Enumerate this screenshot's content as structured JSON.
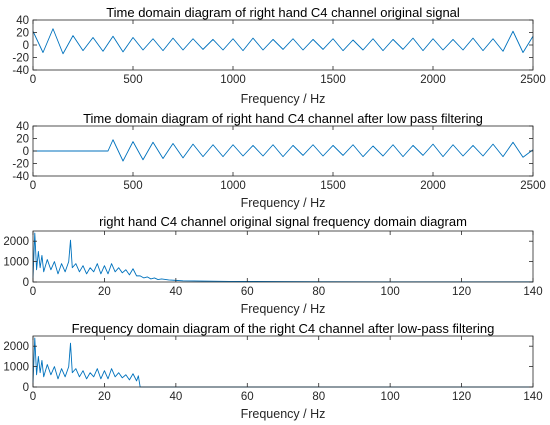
{
  "chart_data": [
    {
      "type": "line",
      "title": "Time domain diagram of right hand C4 channel original signal",
      "xlabel": "Frequency / Hz",
      "ylabel": "",
      "xlim": [
        0,
        2500
      ],
      "ylim": [
        -40,
        40
      ],
      "xticks": [
        "0",
        "500",
        "1000",
        "1500",
        "2000",
        "2500"
      ],
      "yticks": [
        "40",
        "20",
        "0",
        "-20",
        "-40"
      ],
      "grid": false,
      "line_color": "#0072BD",
      "series": [
        {
          "x": [
            0,
            50,
            100,
            150,
            200,
            250,
            300,
            350,
            400,
            450,
            500,
            550,
            600,
            650,
            700,
            750,
            800,
            850,
            900,
            950,
            1000,
            1050,
            1100,
            1150,
            1200,
            1250,
            1300,
            1350,
            1400,
            1450,
            1500,
            1550,
            1600,
            1650,
            1700,
            1750,
            1800,
            1850,
            1900,
            1950,
            2000,
            2050,
            2100,
            2150,
            2200,
            2250,
            2300,
            2350,
            2400,
            2450,
            2500
          ],
          "y": [
            22,
            -12,
            26,
            -14,
            15,
            -9,
            12,
            -10,
            14,
            -11,
            12,
            -8,
            10,
            -9,
            11,
            -8,
            10,
            -7,
            9,
            -8,
            10,
            -9,
            11,
            -8,
            9,
            -7,
            10,
            -8,
            9,
            -7,
            10,
            -9,
            8,
            -8,
            10,
            -9,
            9,
            -7,
            11,
            -9,
            10,
            -8,
            9,
            -8,
            11,
            -9,
            10,
            -10,
            22,
            -12,
            14
          ]
        }
      ]
    },
    {
      "type": "line",
      "title": "Time domain diagram of right hand C4 channel after low pass filtering",
      "xlabel": "Frequency / Hz",
      "ylabel": "",
      "xlim": [
        0,
        2500
      ],
      "ylim": [
        -40,
        40
      ],
      "xticks": [
        "0",
        "500",
        "1000",
        "1500",
        "2000",
        "2500"
      ],
      "yticks": [
        "40",
        "20",
        "0",
        "-20",
        "-40"
      ],
      "grid": false,
      "line_color": "#0072BD",
      "series": [
        {
          "x": [
            0,
            375,
            400,
            450,
            500,
            550,
            600,
            650,
            700,
            750,
            800,
            850,
            900,
            950,
            1000,
            1050,
            1100,
            1150,
            1200,
            1250,
            1300,
            1350,
            1400,
            1450,
            1500,
            1550,
            1600,
            1650,
            1700,
            1750,
            1800,
            1850,
            1900,
            1950,
            2000,
            2050,
            2100,
            2150,
            2200,
            2250,
            2300,
            2350,
            2400,
            2450,
            2500
          ],
          "y": [
            0,
            0,
            18,
            -16,
            15,
            -14,
            14,
            -12,
            12,
            -11,
            11,
            -9,
            10,
            -9,
            10,
            -8,
            9,
            -8,
            10,
            -9,
            9,
            -7,
            10,
            -8,
            9,
            -7,
            10,
            -9,
            8,
            -8,
            10,
            -9,
            9,
            -7,
            11,
            -9,
            10,
            -8,
            9,
            -8,
            11,
            -9,
            14,
            -10,
            2
          ]
        }
      ]
    },
    {
      "type": "line",
      "title": "right hand C4 channel original signal frequency domain diagram",
      "xlabel": "Frequency / Hz",
      "ylabel": "",
      "xlim": [
        0,
        140
      ],
      "ylim": [
        0,
        2500
      ],
      "xticks": [
        "0",
        "20",
        "40",
        "60",
        "80",
        "100",
        "120",
        "140"
      ],
      "yticks": [
        "2000",
        "1000",
        "0"
      ],
      "grid": false,
      "line_color": "#0072BD",
      "series": [
        {
          "x": [
            0,
            0.5,
            1,
            1.5,
            2,
            2.5,
            3,
            4,
            5,
            6,
            7,
            8,
            9,
            10,
            10.5,
            11,
            12,
            13,
            14,
            15,
            16,
            17,
            18,
            19,
            20,
            21,
            22,
            23,
            24,
            25,
            26,
            27,
            28,
            29,
            30,
            31,
            32,
            33,
            34,
            35,
            36,
            38,
            40,
            42,
            45,
            50,
            55,
            60,
            70,
            80,
            100,
            120,
            140
          ],
          "y": [
            200,
            2400,
            600,
            1500,
            700,
            1300,
            500,
            1100,
            600,
            1000,
            400,
            900,
            500,
            1000,
            2050,
            700,
            900,
            500,
            800,
            400,
            700,
            500,
            900,
            400,
            800,
            400,
            900,
            500,
            700,
            450,
            600,
            350,
            650,
            300,
            300,
            200,
            250,
            150,
            200,
            120,
            150,
            100,
            80,
            60,
            50,
            40,
            30,
            25,
            20,
            15,
            10,
            10,
            10
          ]
        }
      ]
    },
    {
      "type": "line",
      "title": "Frequency domain diagram of the right C4 channel after low-pass filtering",
      "xlabel": "Frequency / Hz",
      "ylabel": "",
      "xlim": [
        0,
        140
      ],
      "ylim": [
        0,
        2500
      ],
      "xticks": [
        "0",
        "20",
        "40",
        "60",
        "80",
        "100",
        "120",
        "140"
      ],
      "yticks": [
        "2000",
        "1000",
        "0"
      ],
      "grid": false,
      "line_color": "#0072BD",
      "series": [
        {
          "x": [
            0,
            0.5,
            1,
            1.5,
            2,
            2.5,
            3,
            4,
            5,
            6,
            7,
            8,
            9,
            10,
            10.5,
            11,
            12,
            13,
            14,
            15,
            16,
            17,
            18,
            19,
            20,
            21,
            22,
            23,
            24,
            25,
            26,
            27,
            28,
            29,
            29.5,
            30,
            40,
            60,
            80,
            100,
            120,
            140
          ],
          "y": [
            200,
            2400,
            600,
            1500,
            700,
            1300,
            500,
            1100,
            600,
            1000,
            400,
            900,
            500,
            1000,
            2150,
            700,
            900,
            500,
            800,
            400,
            700,
            500,
            900,
            400,
            800,
            400,
            900,
            500,
            700,
            450,
            600,
            350,
            650,
            300,
            550,
            0,
            0,
            0,
            0,
            0,
            0,
            0
          ]
        }
      ]
    }
  ]
}
